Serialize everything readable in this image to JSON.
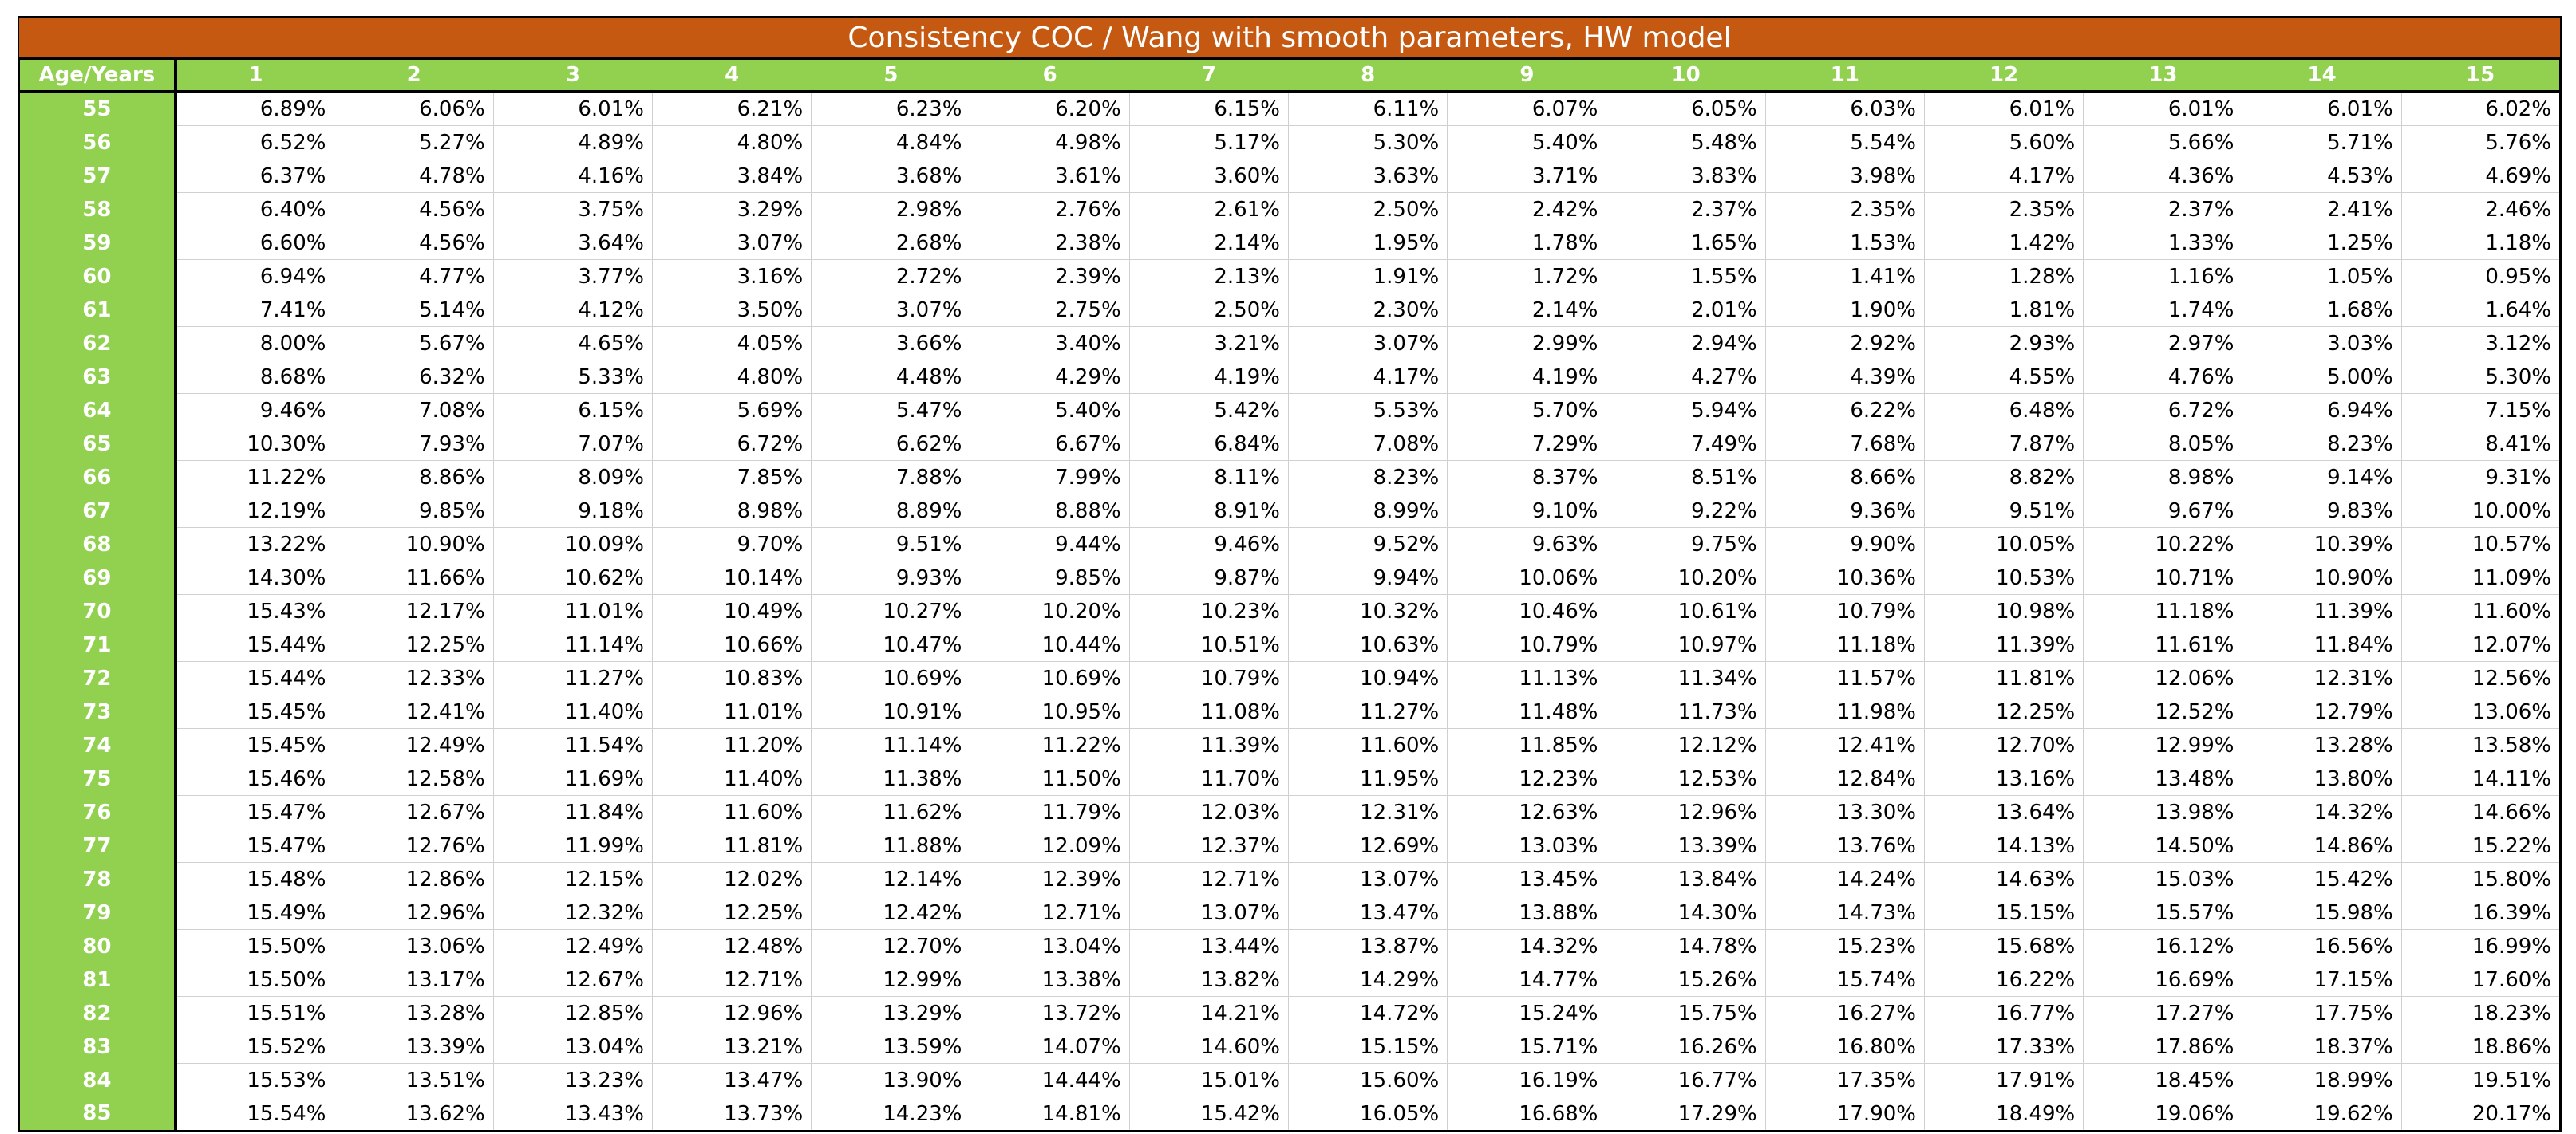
{
  "title": "Consistency COC / Wang with smooth parameters, HW model",
  "colors": {
    "title_bg": "#c65911",
    "header_bg": "#92d050",
    "header_text": "#ffffff"
  },
  "table": {
    "corner_label": "Age/Years",
    "year_headers": [
      "1",
      "2",
      "3",
      "4",
      "5",
      "6",
      "7",
      "8",
      "9",
      "10",
      "11",
      "12",
      "13",
      "14",
      "15"
    ],
    "rows": [
      {
        "age": "55",
        "values": [
          "6.89%",
          "6.06%",
          "6.01%",
          "6.21%",
          "6.23%",
          "6.20%",
          "6.15%",
          "6.11%",
          "6.07%",
          "6.05%",
          "6.03%",
          "6.01%",
          "6.01%",
          "6.01%",
          "6.02%"
        ]
      },
      {
        "age": "56",
        "values": [
          "6.52%",
          "5.27%",
          "4.89%",
          "4.80%",
          "4.84%",
          "4.98%",
          "5.17%",
          "5.30%",
          "5.40%",
          "5.48%",
          "5.54%",
          "5.60%",
          "5.66%",
          "5.71%",
          "5.76%"
        ]
      },
      {
        "age": "57",
        "values": [
          "6.37%",
          "4.78%",
          "4.16%",
          "3.84%",
          "3.68%",
          "3.61%",
          "3.60%",
          "3.63%",
          "3.71%",
          "3.83%",
          "3.98%",
          "4.17%",
          "4.36%",
          "4.53%",
          "4.69%"
        ]
      },
      {
        "age": "58",
        "values": [
          "6.40%",
          "4.56%",
          "3.75%",
          "3.29%",
          "2.98%",
          "2.76%",
          "2.61%",
          "2.50%",
          "2.42%",
          "2.37%",
          "2.35%",
          "2.35%",
          "2.37%",
          "2.41%",
          "2.46%"
        ]
      },
      {
        "age": "59",
        "values": [
          "6.60%",
          "4.56%",
          "3.64%",
          "3.07%",
          "2.68%",
          "2.38%",
          "2.14%",
          "1.95%",
          "1.78%",
          "1.65%",
          "1.53%",
          "1.42%",
          "1.33%",
          "1.25%",
          "1.18%"
        ]
      },
      {
        "age": "60",
        "values": [
          "6.94%",
          "4.77%",
          "3.77%",
          "3.16%",
          "2.72%",
          "2.39%",
          "2.13%",
          "1.91%",
          "1.72%",
          "1.55%",
          "1.41%",
          "1.28%",
          "1.16%",
          "1.05%",
          "0.95%"
        ]
      },
      {
        "age": "61",
        "values": [
          "7.41%",
          "5.14%",
          "4.12%",
          "3.50%",
          "3.07%",
          "2.75%",
          "2.50%",
          "2.30%",
          "2.14%",
          "2.01%",
          "1.90%",
          "1.81%",
          "1.74%",
          "1.68%",
          "1.64%"
        ]
      },
      {
        "age": "62",
        "values": [
          "8.00%",
          "5.67%",
          "4.65%",
          "4.05%",
          "3.66%",
          "3.40%",
          "3.21%",
          "3.07%",
          "2.99%",
          "2.94%",
          "2.92%",
          "2.93%",
          "2.97%",
          "3.03%",
          "3.12%"
        ]
      },
      {
        "age": "63",
        "values": [
          "8.68%",
          "6.32%",
          "5.33%",
          "4.80%",
          "4.48%",
          "4.29%",
          "4.19%",
          "4.17%",
          "4.19%",
          "4.27%",
          "4.39%",
          "4.55%",
          "4.76%",
          "5.00%",
          "5.30%"
        ]
      },
      {
        "age": "64",
        "values": [
          "9.46%",
          "7.08%",
          "6.15%",
          "5.69%",
          "5.47%",
          "5.40%",
          "5.42%",
          "5.53%",
          "5.70%",
          "5.94%",
          "6.22%",
          "6.48%",
          "6.72%",
          "6.94%",
          "7.15%"
        ]
      },
      {
        "age": "65",
        "values": [
          "10.30%",
          "7.93%",
          "7.07%",
          "6.72%",
          "6.62%",
          "6.67%",
          "6.84%",
          "7.08%",
          "7.29%",
          "7.49%",
          "7.68%",
          "7.87%",
          "8.05%",
          "8.23%",
          "8.41%"
        ]
      },
      {
        "age": "66",
        "values": [
          "11.22%",
          "8.86%",
          "8.09%",
          "7.85%",
          "7.88%",
          "7.99%",
          "8.11%",
          "8.23%",
          "8.37%",
          "8.51%",
          "8.66%",
          "8.82%",
          "8.98%",
          "9.14%",
          "9.31%"
        ]
      },
      {
        "age": "67",
        "values": [
          "12.19%",
          "9.85%",
          "9.18%",
          "8.98%",
          "8.89%",
          "8.88%",
          "8.91%",
          "8.99%",
          "9.10%",
          "9.22%",
          "9.36%",
          "9.51%",
          "9.67%",
          "9.83%",
          "10.00%"
        ]
      },
      {
        "age": "68",
        "values": [
          "13.22%",
          "10.90%",
          "10.09%",
          "9.70%",
          "9.51%",
          "9.44%",
          "9.46%",
          "9.52%",
          "9.63%",
          "9.75%",
          "9.90%",
          "10.05%",
          "10.22%",
          "10.39%",
          "10.57%"
        ]
      },
      {
        "age": "69",
        "values": [
          "14.30%",
          "11.66%",
          "10.62%",
          "10.14%",
          "9.93%",
          "9.85%",
          "9.87%",
          "9.94%",
          "10.06%",
          "10.20%",
          "10.36%",
          "10.53%",
          "10.71%",
          "10.90%",
          "11.09%"
        ]
      },
      {
        "age": "70",
        "values": [
          "15.43%",
          "12.17%",
          "11.01%",
          "10.49%",
          "10.27%",
          "10.20%",
          "10.23%",
          "10.32%",
          "10.46%",
          "10.61%",
          "10.79%",
          "10.98%",
          "11.18%",
          "11.39%",
          "11.60%"
        ]
      },
      {
        "age": "71",
        "values": [
          "15.44%",
          "12.25%",
          "11.14%",
          "10.66%",
          "10.47%",
          "10.44%",
          "10.51%",
          "10.63%",
          "10.79%",
          "10.97%",
          "11.18%",
          "11.39%",
          "11.61%",
          "11.84%",
          "12.07%"
        ]
      },
      {
        "age": "72",
        "values": [
          "15.44%",
          "12.33%",
          "11.27%",
          "10.83%",
          "10.69%",
          "10.69%",
          "10.79%",
          "10.94%",
          "11.13%",
          "11.34%",
          "11.57%",
          "11.81%",
          "12.06%",
          "12.31%",
          "12.56%"
        ]
      },
      {
        "age": "73",
        "values": [
          "15.45%",
          "12.41%",
          "11.40%",
          "11.01%",
          "10.91%",
          "10.95%",
          "11.08%",
          "11.27%",
          "11.48%",
          "11.73%",
          "11.98%",
          "12.25%",
          "12.52%",
          "12.79%",
          "13.06%"
        ]
      },
      {
        "age": "74",
        "values": [
          "15.45%",
          "12.49%",
          "11.54%",
          "11.20%",
          "11.14%",
          "11.22%",
          "11.39%",
          "11.60%",
          "11.85%",
          "12.12%",
          "12.41%",
          "12.70%",
          "12.99%",
          "13.28%",
          "13.58%"
        ]
      },
      {
        "age": "75",
        "values": [
          "15.46%",
          "12.58%",
          "11.69%",
          "11.40%",
          "11.38%",
          "11.50%",
          "11.70%",
          "11.95%",
          "12.23%",
          "12.53%",
          "12.84%",
          "13.16%",
          "13.48%",
          "13.80%",
          "14.11%"
        ]
      },
      {
        "age": "76",
        "values": [
          "15.47%",
          "12.67%",
          "11.84%",
          "11.60%",
          "11.62%",
          "11.79%",
          "12.03%",
          "12.31%",
          "12.63%",
          "12.96%",
          "13.30%",
          "13.64%",
          "13.98%",
          "14.32%",
          "14.66%"
        ]
      },
      {
        "age": "77",
        "values": [
          "15.47%",
          "12.76%",
          "11.99%",
          "11.81%",
          "11.88%",
          "12.09%",
          "12.37%",
          "12.69%",
          "13.03%",
          "13.39%",
          "13.76%",
          "14.13%",
          "14.50%",
          "14.86%",
          "15.22%"
        ]
      },
      {
        "age": "78",
        "values": [
          "15.48%",
          "12.86%",
          "12.15%",
          "12.02%",
          "12.14%",
          "12.39%",
          "12.71%",
          "13.07%",
          "13.45%",
          "13.84%",
          "14.24%",
          "14.63%",
          "15.03%",
          "15.42%",
          "15.80%"
        ]
      },
      {
        "age": "79",
        "values": [
          "15.49%",
          "12.96%",
          "12.32%",
          "12.25%",
          "12.42%",
          "12.71%",
          "13.07%",
          "13.47%",
          "13.88%",
          "14.30%",
          "14.73%",
          "15.15%",
          "15.57%",
          "15.98%",
          "16.39%"
        ]
      },
      {
        "age": "80",
        "values": [
          "15.50%",
          "13.06%",
          "12.49%",
          "12.48%",
          "12.70%",
          "13.04%",
          "13.44%",
          "13.87%",
          "14.32%",
          "14.78%",
          "15.23%",
          "15.68%",
          "16.12%",
          "16.56%",
          "16.99%"
        ]
      },
      {
        "age": "81",
        "values": [
          "15.50%",
          "13.17%",
          "12.67%",
          "12.71%",
          "12.99%",
          "13.38%",
          "13.82%",
          "14.29%",
          "14.77%",
          "15.26%",
          "15.74%",
          "16.22%",
          "16.69%",
          "17.15%",
          "17.60%"
        ]
      },
      {
        "age": "82",
        "values": [
          "15.51%",
          "13.28%",
          "12.85%",
          "12.96%",
          "13.29%",
          "13.72%",
          "14.21%",
          "14.72%",
          "15.24%",
          "15.75%",
          "16.27%",
          "16.77%",
          "17.27%",
          "17.75%",
          "18.23%"
        ]
      },
      {
        "age": "83",
        "values": [
          "15.52%",
          "13.39%",
          "13.04%",
          "13.21%",
          "13.59%",
          "14.07%",
          "14.60%",
          "15.15%",
          "15.71%",
          "16.26%",
          "16.80%",
          "17.33%",
          "17.86%",
          "18.37%",
          "18.86%"
        ]
      },
      {
        "age": "84",
        "values": [
          "15.53%",
          "13.51%",
          "13.23%",
          "13.47%",
          "13.90%",
          "14.44%",
          "15.01%",
          "15.60%",
          "16.19%",
          "16.77%",
          "17.35%",
          "17.91%",
          "18.45%",
          "18.99%",
          "19.51%"
        ]
      },
      {
        "age": "85",
        "values": [
          "15.54%",
          "13.62%",
          "13.43%",
          "13.73%",
          "14.23%",
          "14.81%",
          "15.42%",
          "16.05%",
          "16.68%",
          "17.29%",
          "17.90%",
          "18.49%",
          "19.06%",
          "19.62%",
          "20.17%"
        ]
      }
    ]
  }
}
